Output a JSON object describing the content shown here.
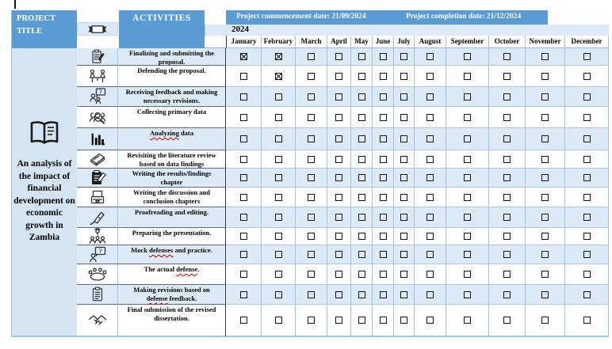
{
  "header": {
    "project_title_label": "PROJECT TITLE",
    "activities_label": "ACTIVITIES",
    "commencement_date_label": "Project commencement date: 21/09/2024",
    "completion_date_label": "Project completion date: 21/12/2024",
    "year_label": "2024",
    "months": [
      "January",
      "February",
      "March",
      "April",
      "May",
      "June",
      "July",
      "August",
      "September",
      "October",
      "November",
      "December"
    ]
  },
  "sidebar": {
    "project_title": "An analysis of the impact of financial development on economic growth in Zambia"
  },
  "icons": {
    "header_icon": "banner-icon",
    "sidebar_icon": "open-book-icon"
  },
  "activities": [
    {
      "icon": "clipboard-edit-icon",
      "label": "Finalizing and submitting the proposal.",
      "checked": [
        "January",
        "February"
      ]
    },
    {
      "icon": "discussion-table-icon",
      "label": "Defending the proposal.",
      "checked": [
        "February"
      ]
    },
    {
      "icon": "feedback-question-icon",
      "label": "Receiving feedback and making necessary revisions.",
      "checked": []
    },
    {
      "icon": "people-search-icon",
      "label": "Collecting primary data",
      "checked": []
    },
    {
      "icon": "bar-chart-icon",
      "label": "Analyzing data",
      "checked": [],
      "spellcheck_flags": [
        "Analyzing"
      ]
    },
    {
      "icon": "books-icon",
      "label": "Revisiting the literature review based on data findings",
      "checked": []
    },
    {
      "icon": "writing-clipboard-icon",
      "label": "Writing the results/findings chapter",
      "checked": []
    },
    {
      "icon": "printer-icon",
      "label": "Writing the discussion and conclusion chapters",
      "checked": []
    },
    {
      "icon": "pen-nib-icon",
      "label": "Proofreading and editing.",
      "checked": []
    },
    {
      "icon": "presenter-icon",
      "label": "Preparing the presentation.",
      "checked": []
    },
    {
      "icon": "mock-defense-icon",
      "label": "Mock defenses and practice.",
      "checked": [],
      "spellcheck_flags": [
        "defenses"
      ]
    },
    {
      "icon": "round-table-icon",
      "label": "The actual defense.",
      "checked": [],
      "spellcheck_flags": [
        "defense"
      ]
    },
    {
      "icon": "checklist-icon",
      "label": "Making revisions based on defense feedback.",
      "checked": [],
      "spellcheck_flags": [
        "defense"
      ]
    },
    {
      "icon": "handshake-icon",
      "label": "Final submission of the revised dissertation.",
      "checked": []
    }
  ],
  "colors": {
    "header_blue": "#5b9bd5",
    "row_stripe_blue": "#dce9f6",
    "sidebar_blue": "#d5e4f2",
    "grid_line_blue": "#9dc3e6",
    "checkbox_black": "#111111",
    "spellcheck_red": "#c00000"
  }
}
